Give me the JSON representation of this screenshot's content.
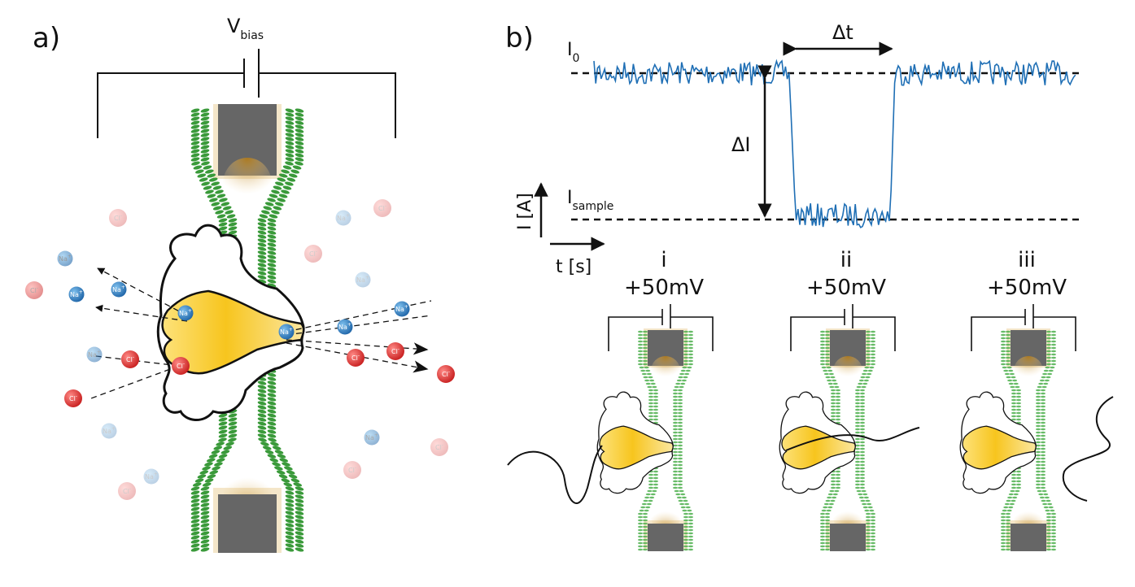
{
  "panel_a": {
    "label": "a)",
    "bias_label": "V",
    "bias_sub": "bias",
    "ions": {
      "na_text": "Na",
      "na_sup": "+",
      "cl_text": "Cl",
      "cl_sup": "-"
    }
  },
  "panel_b": {
    "label": "b)",
    "i0_label": "I",
    "i0_sub": "0",
    "isample_label": "I",
    "isample_sub": "sample",
    "delta_i": "ΔI",
    "delta_t": "Δt",
    "y_axis": "I [A]",
    "x_axis": "t [s]",
    "stages": [
      {
        "numeral": "i",
        "voltage": "+50mV"
      },
      {
        "numeral": "ii",
        "voltage": "+50mV"
      },
      {
        "numeral": "iii",
        "voltage": "+50mV"
      }
    ]
  },
  "colors": {
    "trace": "#1f6fb5",
    "lipid": "#3a9a3a",
    "electrode": "#666666",
    "protein": "#f5c518",
    "na": "#2e7fc0",
    "cl": "#d8302f"
  }
}
